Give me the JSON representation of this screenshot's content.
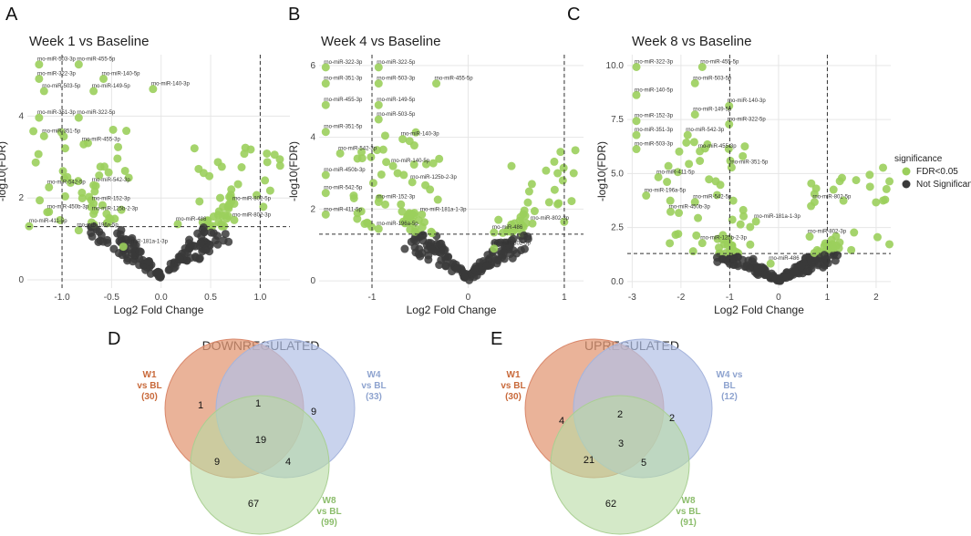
{
  "panel_labels": [
    "A",
    "B",
    "C",
    "D",
    "E"
  ],
  "colors": {
    "significant": "#9bcf5c",
    "not_significant": "#3a3a3a",
    "grid": "#e6e6e6",
    "w1": "#c8693a",
    "w4": "#8ea3cf",
    "w8": "#8cbd6c",
    "w1_fill": "#e39a77",
    "w4_fill": "#b2c0e5",
    "w8_fill": "#b8dba3"
  },
  "legend": {
    "title": "significance",
    "items": [
      "FDR<0.05",
      "Not Significant"
    ]
  },
  "chart_data": [
    {
      "type": "scatter",
      "panel": "A",
      "title": "Week 1 vs Baseline",
      "xlabel": "Log2 Fold Change",
      "ylabel": "-log10(FDR)",
      "xlim": [
        -1.35,
        1.3
      ],
      "ylim": [
        -0.2,
        5.5
      ],
      "xticks": [
        -1.0,
        -0.5,
        0.0,
        0.5,
        1.0
      ],
      "xtick_labels": [
        "-1.0",
        "-0.5",
        "0.0",
        "0.5",
        "1.0"
      ],
      "yticks": [
        0,
        2,
        4
      ],
      "ytick_labels": [
        "0",
        "2",
        "4"
      ],
      "threshold_y": 1.3,
      "fc_lines": [
        -1,
        1
      ],
      "labels": [
        {
          "text": "rno-miR-503-3p",
          "x": -1.25,
          "y": 5.35
        },
        {
          "text": "rno-miR-455-5p",
          "x": -0.85,
          "y": 5.35
        },
        {
          "text": "rno-miR-322-3p",
          "x": -1.25,
          "y": 5.0
        },
        {
          "text": "rno-miR-140-5p",
          "x": -0.6,
          "y": 5.0
        },
        {
          "text": "rno-miR-503-5p",
          "x": -1.2,
          "y": 4.7
        },
        {
          "text": "rno-miR-149-5p",
          "x": -0.7,
          "y": 4.7
        },
        {
          "text": "rno-miR-140-3p",
          "x": -0.1,
          "y": 4.75
        },
        {
          "text": "rno-miR-351-3p",
          "x": -1.25,
          "y": 4.05
        },
        {
          "text": "rno-miR-322-5p",
          "x": -0.85,
          "y": 4.05
        },
        {
          "text": "rno-miR-351-5p",
          "x": -1.2,
          "y": 3.6
        },
        {
          "text": "rno-miR-455-3p",
          "x": -0.8,
          "y": 3.4
        },
        {
          "text": "rno-miR-542-5p",
          "x": -1.15,
          "y": 2.35
        },
        {
          "text": "rno-miR-542-3p",
          "x": -0.7,
          "y": 2.4
        },
        {
          "text": "rno-miR-152-3p",
          "x": -0.7,
          "y": 1.95
        },
        {
          "text": "rno-miR-450b-3p",
          "x": -1.15,
          "y": 1.75
        },
        {
          "text": "rno-miR-125b-2-3p",
          "x": -0.7,
          "y": 1.7
        },
        {
          "text": "rno-miR-411-5p",
          "x": -1.35,
          "y": 1.4
        },
        {
          "text": "rno-miR-196a-5p",
          "x": -0.85,
          "y": 1.3
        },
        {
          "text": "rno-miR-181a-1-3p",
          "x": -0.4,
          "y": 0.9
        },
        {
          "text": "rno-miR-802-5p",
          "x": 0.72,
          "y": 1.95
        },
        {
          "text": "rno-miR-802-3p",
          "x": 0.72,
          "y": 1.55
        },
        {
          "text": "rno-miR-486",
          "x": 0.15,
          "y": 1.45
        }
      ]
    },
    {
      "type": "scatter",
      "panel": "B",
      "title": "Week 4 vs Baseline",
      "xlabel": "Log2 Fold Change",
      "ylabel": "-log10(FDR)",
      "xlim": [
        -1.55,
        1.2
      ],
      "ylim": [
        -0.2,
        6.3
      ],
      "xticks": [
        -1,
        0,
        1
      ],
      "xtick_labels": [
        "-1",
        "0",
        "1"
      ],
      "yticks": [
        0,
        2,
        4,
        6
      ],
      "ytick_labels": [
        "0",
        "2",
        "4",
        "6"
      ],
      "threshold_y": 1.3,
      "fc_lines": [
        -1,
        1
      ],
      "labels": [
        {
          "text": "rno-miR-322-3p",
          "x": -1.5,
          "y": 6.05
        },
        {
          "text": "rno-miR-322-5p",
          "x": -0.95,
          "y": 6.05
        },
        {
          "text": "rno-miR-351-3p",
          "x": -1.5,
          "y": 5.6
        },
        {
          "text": "rno-miR-503-3p",
          "x": -0.95,
          "y": 5.6
        },
        {
          "text": "rno-miR-455-5p",
          "x": -0.35,
          "y": 5.6
        },
        {
          "text": "rno-miR-455-3p",
          "x": -1.5,
          "y": 5.0
        },
        {
          "text": "rno-miR-149-5p",
          "x": -0.95,
          "y": 5.0
        },
        {
          "text": "rno-miR-503-5p",
          "x": -0.95,
          "y": 4.6
        },
        {
          "text": "rno-miR-351-5p",
          "x": -1.5,
          "y": 4.25
        },
        {
          "text": "rno-miR-140-3p",
          "x": -0.7,
          "y": 4.05
        },
        {
          "text": "rno-miR-542-3p",
          "x": -1.35,
          "y": 3.65
        },
        {
          "text": "rno-miR-140-5p",
          "x": -0.8,
          "y": 3.3
        },
        {
          "text": "rno-miR-450b-3p",
          "x": -1.5,
          "y": 3.05
        },
        {
          "text": "rno-miR-125b-2-3p",
          "x": -0.6,
          "y": 2.85
        },
        {
          "text": "rno-miR-542-5p",
          "x": -1.5,
          "y": 2.55
        },
        {
          "text": "rno-miR-152-3p",
          "x": -0.95,
          "y": 2.3
        },
        {
          "text": "rno-miR-411-5p",
          "x": -1.5,
          "y": 1.95
        },
        {
          "text": "rno-miR-181a-1-3p",
          "x": -0.5,
          "y": 1.95
        },
        {
          "text": "rno-miR-196a-5p",
          "x": -0.95,
          "y": 1.55
        },
        {
          "text": "rno-miR-486",
          "x": 0.25,
          "y": 1.45
        },
        {
          "text": "rno-miR-802-3p",
          "x": 0.65,
          "y": 1.7
        },
        {
          "text": "rno-miR-802-5p",
          "x": 0.25,
          "y": 1.0
        }
      ]
    },
    {
      "type": "scatter",
      "panel": "C",
      "title": "Week 8 vs Baseline",
      "xlabel": "Log2 Fold Change",
      "ylabel": "-log10(FDR)",
      "xlim": [
        -3.1,
        2.3
      ],
      "ylim": [
        -0.3,
        10.5
      ],
      "xticks": [
        -3,
        -2,
        -1,
        0,
        1,
        2
      ],
      "xtick_labels": [
        "-3",
        "-2",
        "-1",
        "0",
        "1",
        "2"
      ],
      "yticks": [
        0.0,
        2.5,
        5.0,
        7.5,
        10.0
      ],
      "ytick_labels": [
        "0.0",
        "2.5",
        "5.0",
        "7.5",
        "10.0"
      ],
      "threshold_y": 1.3,
      "fc_lines": [
        -1,
        1
      ],
      "labels": [
        {
          "text": "rno-miR-322-3p",
          "x": -2.95,
          "y": 10.1
        },
        {
          "text": "rno-miR-455-5p",
          "x": -1.6,
          "y": 10.1
        },
        {
          "text": "rno-miR-503-5p",
          "x": -1.75,
          "y": 9.35
        },
        {
          "text": "rno-miR-140-5p",
          "x": -2.95,
          "y": 8.8
        },
        {
          "text": "rno-miR-140-3p",
          "x": -1.05,
          "y": 8.3
        },
        {
          "text": "rno-miR-149-5p",
          "x": -1.75,
          "y": 7.9
        },
        {
          "text": "rno-miR-152-3p",
          "x": -2.95,
          "y": 7.6
        },
        {
          "text": "rno-miR-322-5p",
          "x": -1.05,
          "y": 7.45
        },
        {
          "text": "rno-miR-351-3p",
          "x": -2.95,
          "y": 6.95
        },
        {
          "text": "rno-miR-542-3p",
          "x": -1.9,
          "y": 6.95
        },
        {
          "text": "rno-miR-503-3p",
          "x": -2.95,
          "y": 6.3
        },
        {
          "text": "rno-miR-455-3p",
          "x": -1.65,
          "y": 6.2
        },
        {
          "text": "rno-miR-351-5p",
          "x": -1.0,
          "y": 5.45
        },
        {
          "text": "rno-miR-411-5p",
          "x": -2.5,
          "y": 5.0
        },
        {
          "text": "rno-miR-196a-5p",
          "x": -2.75,
          "y": 4.15
        },
        {
          "text": "rno-miR-542-5p",
          "x": -1.75,
          "y": 3.85
        },
        {
          "text": "rno-miR-450b-3p",
          "x": -2.25,
          "y": 3.4
        },
        {
          "text": "rno-miR-181a-1-3p",
          "x": -0.5,
          "y": 2.95
        },
        {
          "text": "rno-miR-802-5p",
          "x": 0.7,
          "y": 3.85
        },
        {
          "text": "rno-miR-802-3p",
          "x": 0.6,
          "y": 2.25
        },
        {
          "text": "rno-miR-125b-2-3p",
          "x": -1.6,
          "y": 1.95
        },
        {
          "text": "rno-miR-486",
          "x": -0.2,
          "y": 1.0
        }
      ]
    }
  ],
  "venns": [
    {
      "panel": "D",
      "title": "DOWNREGULATED",
      "sets": [
        {
          "line1": "W1",
          "line2": "vs BL",
          "line3": "(30)"
        },
        {
          "line1": "W4",
          "line2": "vs BL",
          "line3": "(33)"
        },
        {
          "line1": "W8",
          "line2": "vs BL",
          "line3": "(99)"
        }
      ],
      "counts": {
        "w1_only": "1",
        "w1_w4": "1",
        "w4_only": "9",
        "w1_w8": "9",
        "all": "19",
        "w4_w8": "4",
        "w8_only": "67"
      }
    },
    {
      "panel": "E",
      "title": "UPREGULATED",
      "sets": [
        {
          "line1": "W1",
          "line2": "vs BL",
          "line3": "(30)"
        },
        {
          "line1": "W4 vs",
          "line2": "BL",
          "line3": "(12)"
        },
        {
          "line1": "W8",
          "line2": "vs BL",
          "line3": "(91)"
        }
      ],
      "counts": {
        "w1_only": "4",
        "w1_w4": "2",
        "w4_only": "2",
        "w1_w8": "21",
        "all": "3",
        "w4_w8": "5",
        "w8_only": "62"
      }
    }
  ]
}
